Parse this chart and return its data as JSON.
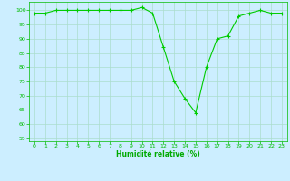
{
  "x": [
    0,
    1,
    2,
    3,
    4,
    5,
    6,
    7,
    8,
    9,
    10,
    11,
    12,
    13,
    14,
    15,
    16,
    17,
    18,
    19,
    20,
    21,
    22,
    23
  ],
  "y": [
    99,
    99,
    100,
    100,
    100,
    100,
    100,
    100,
    100,
    100,
    101,
    99,
    87,
    75,
    69,
    64,
    80,
    90,
    91,
    98,
    99,
    100,
    99,
    99
  ],
  "line_color": "#00cc00",
  "marker": "+",
  "bg_color": "#cceeff",
  "grid_color": "#aaddcc",
  "tick_color": "#00bb00",
  "label_color": "#00aa00",
  "xlabel": "Humidité relative (%)",
  "ylim": [
    54,
    103
  ],
  "xlim": [
    -0.5,
    23.5
  ],
  "yticks": [
    55,
    60,
    65,
    70,
    75,
    80,
    85,
    90,
    95,
    100
  ],
  "xticks": [
    0,
    1,
    2,
    3,
    4,
    5,
    6,
    7,
    8,
    9,
    10,
    11,
    12,
    13,
    14,
    15,
    16,
    17,
    18,
    19,
    20,
    21,
    22,
    23
  ]
}
